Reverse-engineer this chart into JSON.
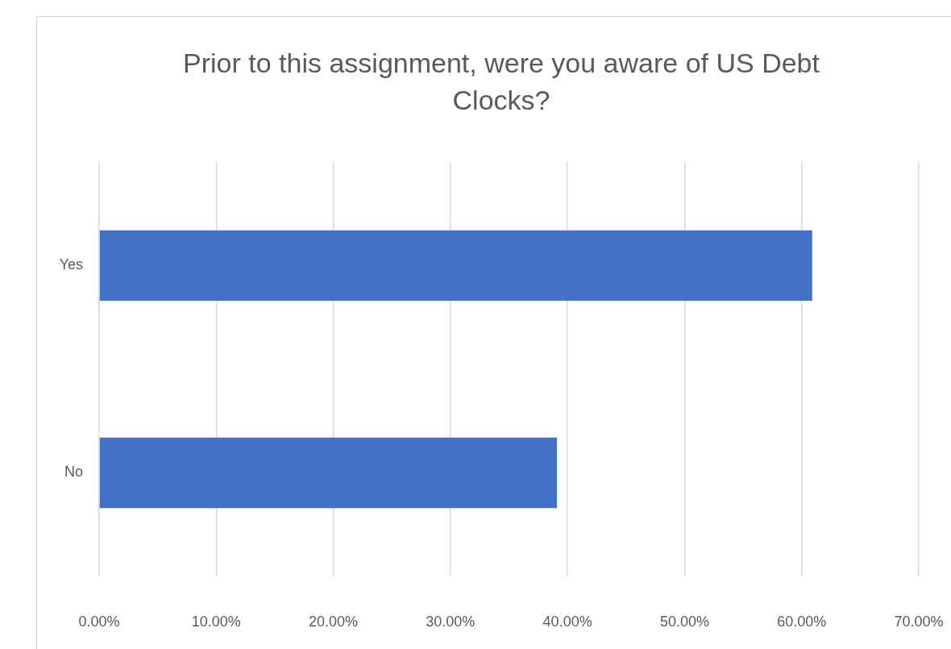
{
  "chart_data": {
    "type": "bar",
    "orientation": "horizontal",
    "title": "Prior to this assignment, were you aware of US Debt Clocks?",
    "categories": [
      "Yes",
      "No"
    ],
    "values": [
      60.9,
      39.1
    ],
    "color": "#4472c4",
    "xlim": [
      0,
      70
    ],
    "xticks": [
      {
        "value": 0,
        "label": "0.00%"
      },
      {
        "value": 10,
        "label": "10.00%"
      },
      {
        "value": 20,
        "label": "20.00%"
      },
      {
        "value": 30,
        "label": "30.00%"
      },
      {
        "value": 40,
        "label": "40.00%"
      },
      {
        "value": 50,
        "label": "50.00%"
      },
      {
        "value": 60,
        "label": "60.00%"
      },
      {
        "value": 70,
        "label": "70.00%"
      }
    ],
    "grid": "x"
  }
}
